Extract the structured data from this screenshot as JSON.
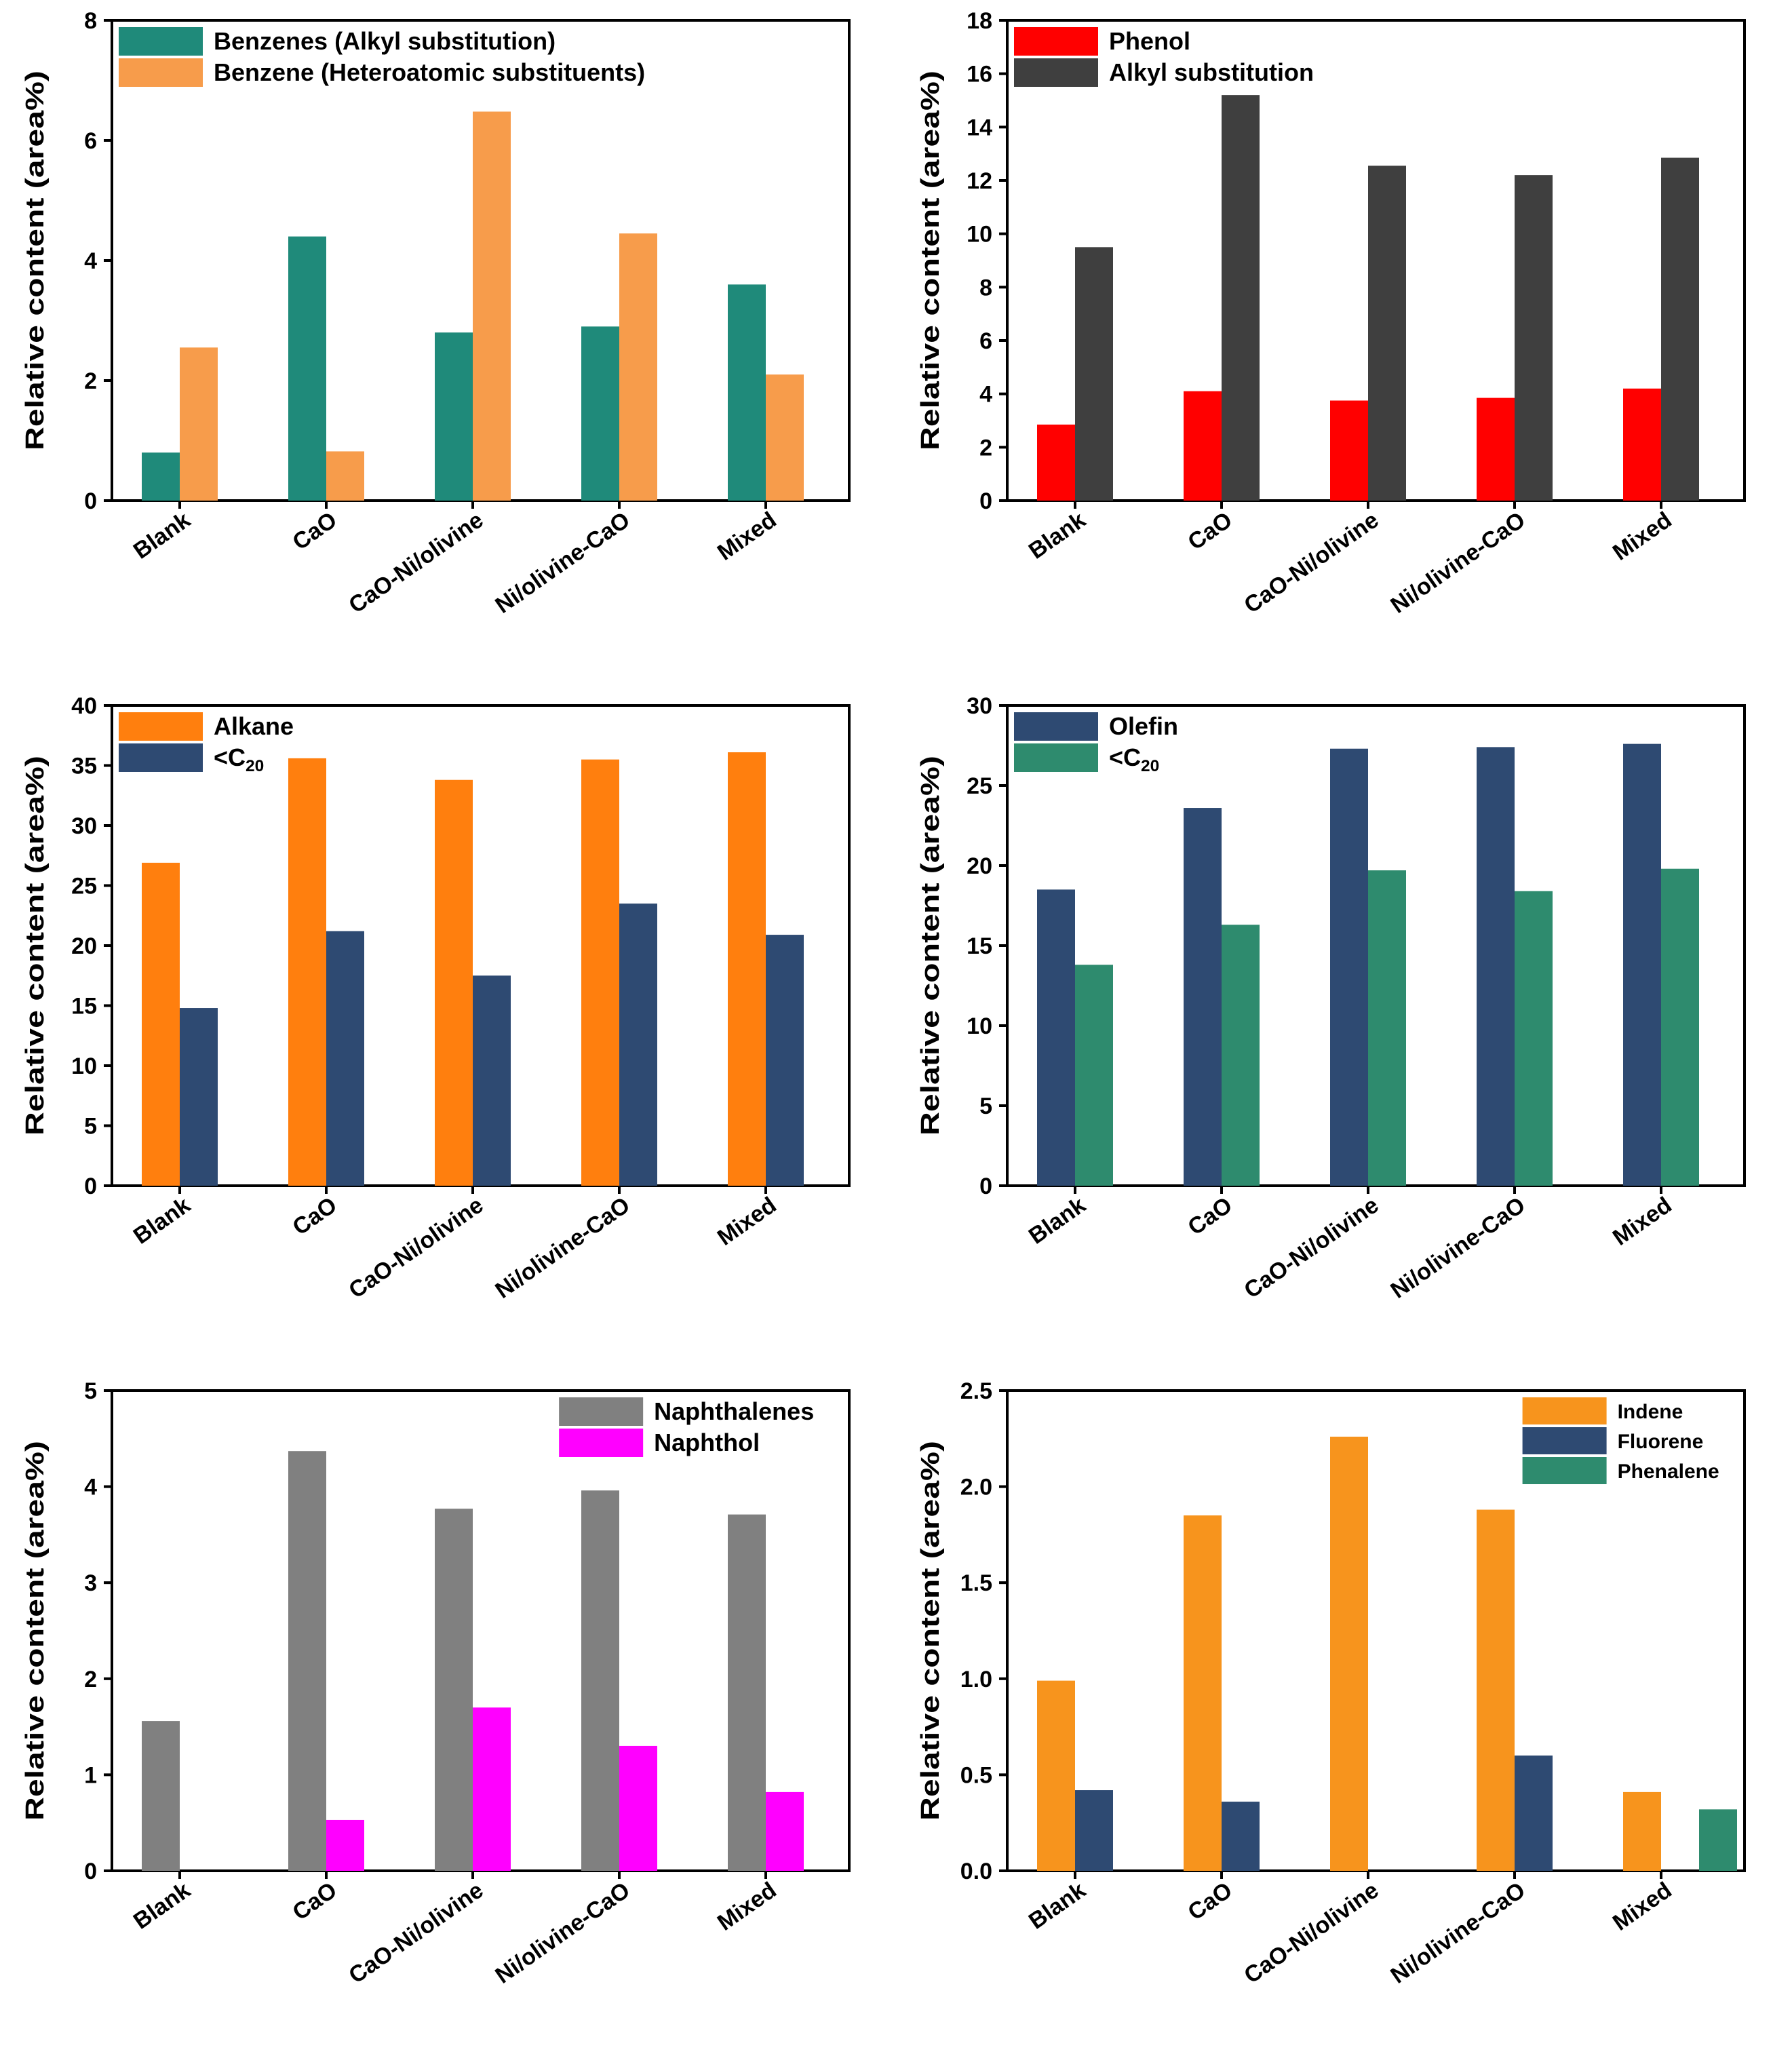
{
  "chart_data": [
    {
      "type": "bar",
      "categories": [
        "Blank",
        "CaO",
        "CaO-Ni/olivine",
        "Ni/olivine-CaO",
        "Mixed"
      ],
      "ylabel": "Relative content (area%)",
      "ylim": [
        0,
        8
      ],
      "yticks": [
        "0",
        "2",
        "4",
        "6",
        "8"
      ],
      "legend": {
        "placement": "top-left"
      },
      "series": [
        {
          "name": "Benzenes (Alkyl substitution)",
          "color": "#1f8a7a",
          "values": [
            0.8,
            4.4,
            2.8,
            2.9,
            3.6
          ]
        },
        {
          "name": "Benzene (Heteroatomic substituents)",
          "color": "#f79c4b",
          "values": [
            2.55,
            0.82,
            6.48,
            4.45,
            2.1
          ]
        }
      ]
    },
    {
      "type": "bar",
      "categories": [
        "Blank",
        "CaO",
        "CaO-Ni/olivine",
        "Ni/olivine-CaO",
        "Mixed"
      ],
      "ylabel": "Relative content (area%)",
      "ylim": [
        0,
        18
      ],
      "yticks": [
        "0",
        "2",
        "4",
        "6",
        "8",
        "10",
        "12",
        "14",
        "16",
        "18"
      ],
      "legend": {
        "placement": "top-left"
      },
      "series": [
        {
          "name": "Phenol",
          "color": "#ff0000",
          "values": [
            2.85,
            4.1,
            3.75,
            3.85,
            4.2
          ]
        },
        {
          "name": "Alkyl substitution",
          "color": "#3f3f3f",
          "values": [
            9.5,
            15.2,
            12.55,
            12.2,
            12.85
          ]
        }
      ]
    },
    {
      "type": "bar",
      "categories": [
        "Blank",
        "CaO",
        "CaO-Ni/olivine",
        "Ni/olivine-CaO",
        "Mixed"
      ],
      "ylabel": "Relative content (area%)",
      "ylim": [
        0,
        40
      ],
      "yticks": [
        "0",
        "5",
        "10",
        "15",
        "20",
        "25",
        "30",
        "35",
        "40"
      ],
      "legend": {
        "placement": "top-left"
      },
      "series": [
        {
          "name": "Alkane",
          "color": "#ff7f0e",
          "values": [
            26.9,
            35.6,
            33.8,
            35.5,
            36.1
          ]
        },
        {
          "name": "<C",
          "subscript": "20",
          "color": "#2e4a72",
          "values": [
            14.8,
            21.2,
            17.5,
            23.5,
            20.9
          ]
        }
      ]
    },
    {
      "type": "bar",
      "categories": [
        "Blank",
        "CaO",
        "CaO-Ni/olivine",
        "Ni/olivine-CaO",
        "Mixed"
      ],
      "ylabel": "Relative content (area%)",
      "ylim": [
        0,
        30
      ],
      "yticks": [
        "0",
        "5",
        "10",
        "15",
        "20",
        "25",
        "30"
      ],
      "legend": {
        "placement": "top-left"
      },
      "series": [
        {
          "name": "Olefin",
          "color": "#2e4a72",
          "values": [
            18.5,
            23.6,
            27.3,
            27.4,
            27.6
          ]
        },
        {
          "name": "<C",
          "subscript": "20",
          "color": "#2e8b6e",
          "values": [
            13.8,
            16.3,
            19.7,
            18.4,
            19.8
          ]
        }
      ]
    },
    {
      "type": "bar",
      "categories": [
        "Blank",
        "CaO",
        "CaO-Ni/olivine",
        "Ni/olivine-CaO",
        "Mixed"
      ],
      "ylabel": "Relative content (area%)",
      "ylim": [
        0,
        5
      ],
      "yticks": [
        "0",
        "1",
        "2",
        "3",
        "4",
        "5"
      ],
      "legend": {
        "placement": "top-right"
      },
      "series": [
        {
          "name": "Naphthalenes",
          "color": "#808080",
          "values": [
            1.56,
            4.37,
            3.77,
            3.96,
            3.71
          ]
        },
        {
          "name": "Naphthol",
          "color": "#ff00ff",
          "values": [
            0,
            0.53,
            1.7,
            1.3,
            0.82
          ]
        }
      ]
    },
    {
      "type": "bar",
      "categories": [
        "Blank",
        "CaO",
        "CaO-Ni/olivine",
        "Ni/olivine-CaO",
        "Mixed"
      ],
      "ylabel": "Relative content (area%)",
      "ylim": [
        0,
        2.5
      ],
      "yticks": [
        "0.0",
        "0.5",
        "1.0",
        "1.5",
        "2.0",
        "2.5"
      ],
      "legend": {
        "placement": "top-right"
      },
      "series": [
        {
          "name": "Indene",
          "color": "#f7941d",
          "values": [
            0.99,
            1.85,
            2.26,
            1.88,
            0.41
          ]
        },
        {
          "name": "Fluorene",
          "color": "#2e4a72",
          "values": [
            0.42,
            0.36,
            0,
            0.6,
            0
          ]
        },
        {
          "name": "Phenalene",
          "color": "#2e8b6e",
          "values": [
            0,
            0,
            0,
            0,
            0.32
          ]
        }
      ]
    }
  ]
}
